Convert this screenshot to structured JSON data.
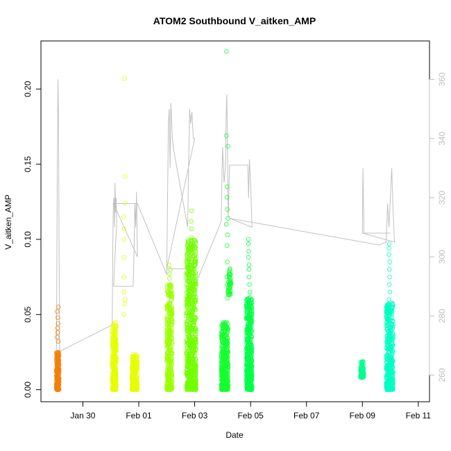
{
  "chart_data": {
    "type": "scatter",
    "title": "ATOM2 Southbound V_aitken_AMP",
    "xlabel": "Date",
    "ylabel": "V_aitken_AMP",
    "x_ticks": [
      "Jan 30",
      "Feb 01",
      "Feb 03",
      "Feb 05",
      "Feb 07",
      "Feb 09",
      "Feb 11"
    ],
    "y_ticks": [
      "0.00",
      "0.05",
      "0.10",
      "0.15",
      "0.20"
    ],
    "y2_ticks": [
      "260",
      "280",
      "300",
      "320",
      "340",
      "360"
    ],
    "xlim_days": [
      -1.5,
      12.4
    ],
    "ylim": [
      -0.008,
      0.232
    ],
    "y2lim": [
      251,
      373
    ],
    "grid": false,
    "legend": "none",
    "scatter_series": [
      {
        "color": "#f57f0b",
        "outliers": [
          0.055,
          0.052,
          0.048,
          0.044,
          0.041,
          0.038,
          0.035,
          0.032
        ],
        "segments": [
          {
            "start": -0.95,
            "end": -0.85,
            "ymin": 0.0,
            "ymax": 0.025,
            "count": 220
          }
        ]
      },
      {
        "color": "#e6ff00",
        "outliers": [
          0.207,
          0.142,
          0.124,
          0.115,
          0.107,
          0.1,
          0.088,
          0.075,
          0.065,
          0.06,
          0.057,
          0.05
        ],
        "segments": [
          {
            "start": 1.05,
            "end": 1.2,
            "ymin": 0.0,
            "ymax": 0.045,
            "count": 300
          },
          {
            "start": 1.75,
            "end": 1.95,
            "ymin": 0.0,
            "ymax": 0.024,
            "count": 260
          }
        ]
      },
      {
        "color": "#9cff00",
        "outliers": [
          0.083,
          0.08,
          0.077,
          0.074
        ],
        "segments": [
          {
            "start": 3.0,
            "end": 3.2,
            "ymin": 0.0,
            "ymax": 0.07,
            "count": 320
          }
        ]
      },
      {
        "color": "#72ff00",
        "outliers": [
          0.119,
          0.112,
          0.107,
          0.101
        ],
        "segments": [
          {
            "start": 3.7,
            "end": 4.05,
            "ymin": 0.0,
            "ymax": 0.1,
            "count": 700
          }
        ]
      },
      {
        "color": "#14ff30",
        "outliers": [
          0.225,
          0.169,
          0.162,
          0.135,
          0.128,
          0.12,
          0.114,
          0.11,
          0.103,
          0.096,
          0.085,
          0.075,
          0.07,
          0.065,
          0.061
        ],
        "segments": [
          {
            "start": 4.95,
            "end": 5.2,
            "ymin": 0.0,
            "ymax": 0.045,
            "count": 420
          },
          {
            "start": 5.2,
            "end": 5.3,
            "ymin": 0.063,
            "ymax": 0.082,
            "count": 40
          }
        ]
      },
      {
        "color": "#00ff48",
        "outliers": [
          0.1,
          0.097,
          0.092,
          0.088,
          0.083,
          0.08,
          0.075,
          0.07,
          0.065
        ],
        "segments": [
          {
            "start": 5.85,
            "end": 6.05,
            "ymin": 0.0,
            "ymax": 0.062,
            "count": 480
          }
        ]
      },
      {
        "color": "#00ff8c",
        "outliers": [],
        "segments": [
          {
            "start": 9.93,
            "end": 10.05,
            "ymin": 0.008,
            "ymax": 0.019,
            "count": 70
          }
        ]
      },
      {
        "color": "#00ffc4",
        "outliers": [
          0.097,
          0.094,
          0.09,
          0.085,
          0.08,
          0.075,
          0.07,
          0.065,
          0.06
        ],
        "segments": [
          {
            "start": 10.85,
            "end": 11.1,
            "ymin": 0.0,
            "ymax": 0.058,
            "count": 420
          }
        ]
      }
    ],
    "line_series": {
      "color": "#c0c0c0",
      "axis": "right",
      "points": [
        [
          -1.0,
          263
        ],
        [
          -0.95,
          263
        ],
        [
          -0.93,
          300
        ],
        [
          -0.91,
          340
        ],
        [
          -0.89,
          360
        ],
        [
          -0.87,
          345
        ],
        [
          -0.85,
          300
        ],
        [
          -0.83,
          268
        ],
        [
          1.05,
          277
        ],
        [
          1.07,
          300
        ],
        [
          1.09,
          318
        ],
        [
          1.11,
          320
        ],
        [
          1.13,
          310
        ],
        [
          1.15,
          325
        ],
        [
          1.17,
          315
        ],
        [
          1.19,
          320
        ],
        [
          1.21,
          312
        ],
        [
          1.1,
          290
        ],
        [
          1.8,
          290
        ],
        [
          1.83,
          302
        ],
        [
          1.86,
          318
        ],
        [
          1.89,
          310
        ],
        [
          1.92,
          322
        ],
        [
          1.95,
          300
        ],
        [
          1.1,
          318
        ],
        [
          1.95,
          318
        ],
        [
          3.0,
          294
        ],
        [
          3.03,
          320
        ],
        [
          3.06,
          345
        ],
        [
          3.09,
          350
        ],
        [
          3.12,
          330
        ],
        [
          3.15,
          352
        ],
        [
          3.2,
          340
        ],
        [
          3.25,
          336
        ],
        [
          3.75,
          310
        ],
        [
          3.78,
          330
        ],
        [
          3.82,
          350
        ],
        [
          3.86,
          345
        ],
        [
          3.9,
          349
        ],
        [
          3.95,
          340
        ],
        [
          4.0,
          340
        ],
        [
          3.0,
          296
        ],
        [
          3.75,
          296
        ],
        [
          3.9,
          305
        ],
        [
          4.0,
          290
        ],
        [
          4.95,
          312
        ],
        [
          4.98,
          330
        ],
        [
          5.0,
          337
        ],
        [
          5.05,
          325
        ],
        [
          5.1,
          330
        ],
        [
          5.12,
          345
        ],
        [
          5.15,
          355
        ],
        [
          5.18,
          330
        ],
        [
          5.2,
          313
        ],
        [
          5.25,
          331
        ],
        [
          5.9,
          331
        ],
        [
          5.93,
          320
        ],
        [
          5.96,
          333
        ],
        [
          6.0,
          325
        ],
        [
          6.05,
          310
        ],
        [
          5.25,
          313
        ],
        [
          10.6,
          304
        ],
        [
          10.85,
          305
        ],
        [
          10.9,
          318
        ],
        [
          10.95,
          310
        ],
        [
          11.0,
          320
        ],
        [
          11.05,
          330
        ],
        [
          11.1,
          315
        ],
        [
          11.15,
          305
        ],
        [
          10.0,
          308
        ],
        [
          10.02,
          330
        ],
        [
          10.04,
          318
        ],
        [
          10.06,
          308
        ],
        [
          11.0,
          308
        ]
      ]
    }
  }
}
